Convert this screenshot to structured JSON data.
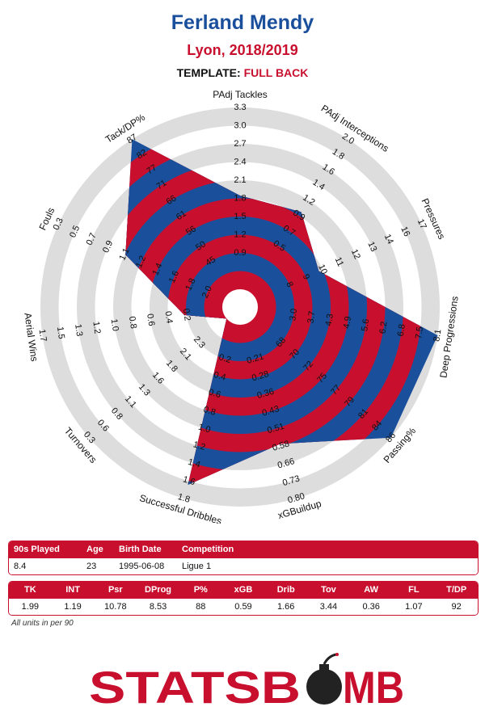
{
  "header": {
    "title": "Ferland Mendy",
    "subtitle": "Lyon, 2018/2019",
    "template_label": "TEMPLATE:",
    "template_value": "FULL BACK"
  },
  "colors": {
    "blue": "#1a4f9c",
    "red": "#c8102e",
    "ring": "#dddddd"
  },
  "chart_data": {
    "type": "radar",
    "title": "",
    "axes": [
      {
        "label": "PAdj Tackles",
        "ticks": [
          "0.9",
          "1.2",
          "1.5",
          "1.8",
          "2.1",
          "2.4",
          "2.7",
          "3.0",
          "3.3"
        ],
        "value": 1.99,
        "min": 0.6,
        "max": 3.3
      },
      {
        "label": "PAdj Interceptions",
        "ticks": [
          "0.5",
          "0.7",
          "0.9",
          "1.2",
          "1.4",
          "1.6",
          "1.8",
          "2.0"
        ],
        "value": 1.19,
        "min": 0.3,
        "max": 2.0
      },
      {
        "label": "Pressures",
        "ticks": [
          "8",
          "9",
          "10",
          "11",
          "12",
          "13",
          "14",
          "16",
          "17"
        ],
        "value": 10.78,
        "min": 7,
        "max": 17
      },
      {
        "label": "Deep Progressions",
        "ticks": [
          "3.0",
          "3.7",
          "4.3",
          "4.9",
          "5.6",
          "6.2",
          "6.8",
          "7.5",
          "8.1"
        ],
        "value": 8.53,
        "min": 2.3,
        "max": 8.1
      },
      {
        "label": "Passing%",
        "ticks": [
          "68",
          "70",
          "72",
          "75",
          "77",
          "79",
          "81",
          "84",
          "86"
        ],
        "value": 88,
        "min": 66,
        "max": 86
      },
      {
        "label": "xGBuildup",
        "ticks": [
          "0.21",
          "0.28",
          "0.36",
          "0.43",
          "0.51",
          "0.58",
          "0.66",
          "0.73",
          "0.80"
        ],
        "value": 0.59,
        "min": 0.13,
        "max": 0.8
      },
      {
        "label": "Successful Dribbles",
        "ticks": [
          "0.2",
          "0.4",
          "0.6",
          "0.8",
          "1.0",
          "1.2",
          "1.4",
          "1.6",
          "1.8"
        ],
        "value": 1.66,
        "min": 0.0,
        "max": 1.8
      },
      {
        "label": "Turnovers",
        "ticks": [
          "2.3",
          "2.1",
          "1.8",
          "1.6",
          "1.3",
          "1.1",
          "0.8",
          "0.6",
          "0.3"
        ],
        "value": 3.44,
        "min": 2.6,
        "max": 0.3
      },
      {
        "label": "Aerial Wins",
        "ticks": [
          "0.2",
          "0.4",
          "0.6",
          "0.8",
          "1.0",
          "1.2",
          "1.3",
          "1.5",
          "1.7"
        ],
        "value": 0.36,
        "min": 0.0,
        "max": 1.7
      },
      {
        "label": "Fouls",
        "ticks": [
          "2.0",
          "1.8",
          "1.6",
          "1.4",
          "1.2",
          "1.1",
          "0.9",
          "0.7",
          "0.5",
          "0.3"
        ],
        "value": 1.07,
        "min": 2.2,
        "max": 0.3
      },
      {
        "label": "Tack/DP%",
        "ticks": [
          "45",
          "50",
          "56",
          "61",
          "66",
          "71",
          "77",
          "82",
          "87"
        ],
        "value": 92,
        "min": 40,
        "max": 87
      }
    ]
  },
  "info_table": {
    "headers": [
      "90s Played",
      "Age",
      "Birth Date",
      "Competition"
    ],
    "values": [
      "8.4",
      "23",
      "1995-06-08",
      "Ligue 1"
    ]
  },
  "stats_table": {
    "headers": [
      "TK",
      "INT",
      "Psr",
      "DProg",
      "P%",
      "xGB",
      "Drib",
      "Tov",
      "AW",
      "FL",
      "T/DP"
    ],
    "values": [
      "1.99",
      "1.19",
      "10.78",
      "8.53",
      "88",
      "0.59",
      "1.66",
      "3.44",
      "0.36",
      "1.07",
      "92"
    ]
  },
  "footnote": "All units in per 90",
  "logo": {
    "text_left": "STATSB",
    "text_right": "MB",
    "icon": "bomb-icon"
  }
}
